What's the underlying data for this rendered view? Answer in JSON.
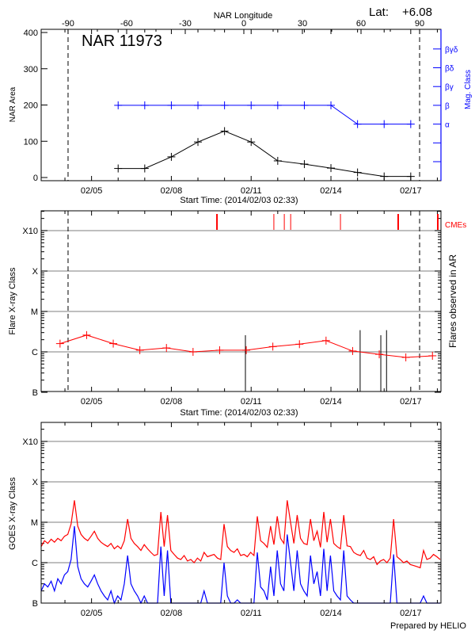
{
  "chart_data": [
    {
      "type": "line",
      "title": "NAR 11973",
      "latitude_label": "Lat:",
      "latitude_value": "+6.08",
      "top_axis_label": "NAR Longitude",
      "top_axis_ticks": [
        "-90",
        "-60",
        "-30",
        "0",
        "30",
        "60",
        "90"
      ],
      "top_axis_range": [
        -90,
        90
      ],
      "xlabel": "Start Time: (2014/02/03 02:33)",
      "x_range": [
        "2014-02-03T02:33",
        "2014-02-18T04:00"
      ],
      "x_tick_labels": [
        "02/05",
        "02/08",
        "02/11",
        "02/14",
        "02/17"
      ],
      "ylabel": "NAR Area",
      "ylim": [
        0,
        400
      ],
      "y_ticks": [
        "0",
        "100",
        "200",
        "300",
        "400"
      ],
      "y2label": "Mag. Class",
      "y2_ticks": [
        "",
        "",
        "α",
        "β",
        "βγ",
        "βδ",
        "βγδ"
      ],
      "limb_longitudes": [
        -90,
        90
      ],
      "colors": {
        "area": "#000000",
        "mag_class": "#0000ff"
      },
      "series": [
        {
          "name": "NAR Area",
          "x": [
            "2014-02-06T00:00",
            "2014-02-07T00:00",
            "2014-02-08T00:00",
            "2014-02-09T00:00",
            "2014-02-10T00:00",
            "2014-02-11T00:00",
            "2014-02-12T00:00",
            "2014-02-13T00:00",
            "2014-02-14T00:00",
            "2014-02-15T00:00",
            "2014-02-16T00:00",
            "2014-02-17T00:00"
          ],
          "values": [
            25,
            25,
            57,
            98,
            128,
            98,
            46,
            37,
            26,
            14,
            3,
            3
          ]
        },
        {
          "name": "Mag. Class",
          "x": [
            "2014-02-06T00:00",
            "2014-02-07T00:00",
            "2014-02-08T00:00",
            "2014-02-09T00:00",
            "2014-02-10T00:00",
            "2014-02-11T00:00",
            "2014-02-12T00:00",
            "2014-02-13T00:00",
            "2014-02-14T00:00",
            "2014-02-15T00:00",
            "2014-02-16T00:00",
            "2014-02-17T00:00"
          ],
          "values": [
            "β",
            "β",
            "β",
            "β",
            "β",
            "β",
            "β",
            "β",
            "β",
            "α",
            "α",
            "α"
          ]
        }
      ]
    },
    {
      "type": "line",
      "xlabel": "Start Time: (2014/02/03 02:33)",
      "x_tick_labels": [
        "02/05",
        "02/08",
        "02/11",
        "02/14",
        "02/17"
      ],
      "ylabel": "Flare X-ray Class",
      "y2label": "Flares observed in AR",
      "y_scale": "log",
      "y_ticks": [
        "B",
        "C",
        "M",
        "X",
        "X10"
      ],
      "grid": true,
      "cme_label": "CMEs",
      "colors": {
        "flares": "#ff0000",
        "cmes": "#ff0000",
        "ar_flares": "#000000",
        "grid": "#999999"
      },
      "series": [
        {
          "x": [
            "2014-02-03T19:35",
            "2014-02-04T19:35",
            "2014-02-05T19:35",
            "2014-02-06T19:35",
            "2014-02-07T19:35",
            "2014-02-08T19:35",
            "2014-02-09T19:35",
            "2014-02-10T19:35",
            "2014-02-11T19:35",
            "2014-02-12T19:35",
            "2014-02-13T19:35",
            "2014-02-14T19:35",
            "2014-02-15T19:35",
            "2014-02-16T19:35",
            "2014-02-17T19:35"
          ],
          "values_c_class": [
            1.6,
            2.6,
            1.6,
            1.1,
            1.25,
            1.0,
            1.1,
            1.1,
            1.35,
            1.55,
            1.9,
            1.05,
            0.87,
            0.73,
            0.8
          ]
        }
      ],
      "ar_flares": [
        {
          "time": "2014-02-10T18:50",
          "c_class": 1.8
        },
        {
          "time": "2014-02-15T02:20",
          "c_class": 2.4
        },
        {
          "time": "2014-02-15T21:00",
          "c_class": 1.8
        },
        {
          "time": "2014-02-16T02:10",
          "c_class": 2.4
        }
      ],
      "cmes": [
        {
          "time": "2014-02-09T17:10",
          "wide": true
        },
        {
          "time": "2014-02-11T20:30",
          "wide": false
        },
        {
          "time": "2014-02-12T05:55",
          "wide": false
        },
        {
          "time": "2014-02-12T11:40",
          "wide": false
        },
        {
          "time": "2014-02-14T08:35",
          "wide": false
        },
        {
          "time": "2014-02-16T12:40",
          "wide": true
        },
        {
          "time": "2014-02-18T00:25",
          "wide": true
        }
      ]
    },
    {
      "type": "line",
      "ylabel": "GOES X-ray Class",
      "y_scale": "log",
      "y_ticks": [
        "B",
        "C",
        "M",
        "X",
        "X10"
      ],
      "x_tick_labels": [
        "02/05",
        "02/08",
        "02/11",
        "02/14",
        "02/17"
      ],
      "grid": true,
      "time_start": "2014-02-03T02:33",
      "cadence_hours": 3,
      "colors": {
        "long": "#ff0000",
        "short": "#0000ff"
      },
      "series": [
        {
          "name": "long",
          "values_c_class": [
            2.5,
            3.5,
            3.0,
            3.8,
            3.2,
            4.0,
            3.5,
            4.5,
            5.0,
            9.0,
            35,
            8,
            5,
            4,
            3.5,
            4.5,
            6,
            4,
            3.2,
            2.8,
            2.5,
            3.0,
            2.2,
            2.6,
            2.2,
            3.5,
            12,
            4,
            3,
            2.5,
            2.0,
            2.8,
            2.2,
            1.8,
            1.5,
            1.6,
            18,
            2.5,
            15,
            2.0,
            1.6,
            1.3,
            1.2,
            1.5,
            1.1,
            1.2,
            1.0,
            1.3,
            1.1,
            1.8,
            1.4,
            1.5,
            1.6,
            1.3,
            1.2,
            9,
            2.5,
            2.0,
            1.8,
            2.2,
            1.5,
            1.6,
            1.4,
            1.8,
            1.5,
            14,
            3.5,
            3,
            2.4,
            8,
            2.8,
            14,
            4,
            3,
            35,
            10,
            3,
            15,
            4,
            3.0,
            2.8,
            12,
            3.5,
            6,
            2.4,
            18,
            3.2,
            12,
            3,
            2.5,
            2.2,
            15,
            2.6,
            2.5,
            1.8,
            1.6,
            1.5,
            2.0,
            1.3,
            1.2,
            1.4,
            0.9,
            1.1,
            1.2,
            1.0,
            1.3,
            12,
            1.4,
            1.2,
            1.0,
            1.1,
            0.9,
            0.85,
            0.8,
            0.75,
            2.0,
            1.2,
            1.3,
            1.6,
            1.4,
            1.2
          ]
        },
        {
          "name": "short",
          "values_c_class": [
            0.2,
            0.3,
            0.25,
            0.35,
            0.2,
            0.4,
            0.3,
            0.5,
            0.6,
            1.2,
            8,
            0.8,
            0.4,
            0.3,
            0.25,
            0.35,
            0.5,
            0.3,
            0.2,
            0.15,
            0.12,
            0.2,
            0.1,
            0.15,
            0.12,
            0.3,
            1.5,
            0.3,
            0.2,
            0.15,
            0.08,
            0.15,
            0.1,
            0.08,
            0.06,
            0.07,
            2.5,
            0.15,
            2.0,
            0.1,
            0.07,
            0.05,
            0.05,
            0.06,
            0.04,
            0.05,
            0.04,
            0.05,
            0.04,
            0.2,
            0.07,
            0.08,
            0.09,
            0.06,
            0.05,
            1.0,
            0.15,
            0.1,
            0.08,
            0.12,
            0.06,
            0.07,
            0.05,
            0.09,
            0.06,
            1.8,
            0.25,
            0.2,
            0.12,
            0.8,
            0.15,
            2.0,
            0.3,
            0.2,
            5,
            1.0,
            0.2,
            2.0,
            0.3,
            0.2,
            0.15,
            1.5,
            0.3,
            0.6,
            0.15,
            2.2,
            0.2,
            1.5,
            0.2,
            0.15,
            0.12,
            2.0,
            0.15,
            0.12,
            0.08,
            0.06,
            0.05,
            0.1,
            0.05,
            0.04,
            0.06,
            0.03,
            0.04,
            0.05,
            0.03,
            0.05,
            1.6,
            0.05,
            0.04,
            0.03,
            0.04,
            0.03,
            0.02,
            0.02,
            0.02,
            0.15,
            0.05,
            0.06,
            0.1,
            0.08,
            0.05
          ]
        }
      ]
    }
  ],
  "footer": {
    "credit": "Prepared by HELIO"
  }
}
